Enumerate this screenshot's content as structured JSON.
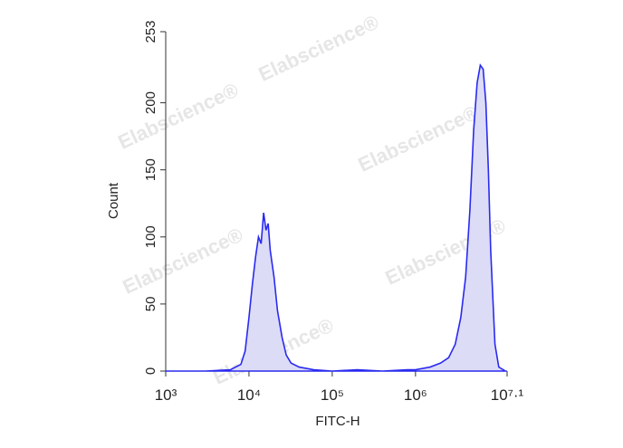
{
  "chart_data": {
    "type": "histogram-line",
    "x_label": "FITC-H",
    "y_label": "Count",
    "watermark": "Elabscience®",
    "log_x": true,
    "xlim": [
      1000,
      12589254
    ],
    "xticks": [
      {
        "value": 1000,
        "label": "10³"
      },
      {
        "value": 10000,
        "label": "10⁴"
      },
      {
        "value": 100000,
        "label": "10⁵"
      },
      {
        "value": 1000000,
        "label": "10⁶"
      },
      {
        "value": 12589254,
        "label": "10⁷·¹"
      }
    ],
    "ylim": [
      0,
      253
    ],
    "yticks": [
      0,
      50,
      100,
      150,
      200,
      253
    ],
    "series": [
      {
        "color": "#2a2af0",
        "fill": "#dcdcf6",
        "x": [
          1000,
          3000,
          6000,
          8000,
          9000,
          10000,
          11000,
          12000,
          13000,
          14000,
          15000,
          16000,
          17000,
          18000,
          20000,
          22000,
          25000,
          28000,
          32000,
          40000,
          60000,
          100000,
          200000,
          400000,
          800000,
          1000000,
          1500000,
          2000000,
          2500000,
          3000000,
          3500000,
          4000000,
          4500000,
          5000000,
          5500000,
          6000000,
          6500000,
          7000000,
          7500000,
          8000000,
          9000000,
          10000000,
          12000000
        ],
        "values": [
          0,
          0,
          1,
          5,
          15,
          40,
          65,
          85,
          100,
          95,
          118,
          105,
          110,
          90,
          70,
          45,
          25,
          12,
          6,
          3,
          1,
          0,
          1,
          0,
          1,
          1,
          3,
          6,
          10,
          20,
          40,
          70,
          120,
          180,
          215,
          228,
          225,
          200,
          150,
          90,
          20,
          3,
          0
        ]
      }
    ]
  }
}
